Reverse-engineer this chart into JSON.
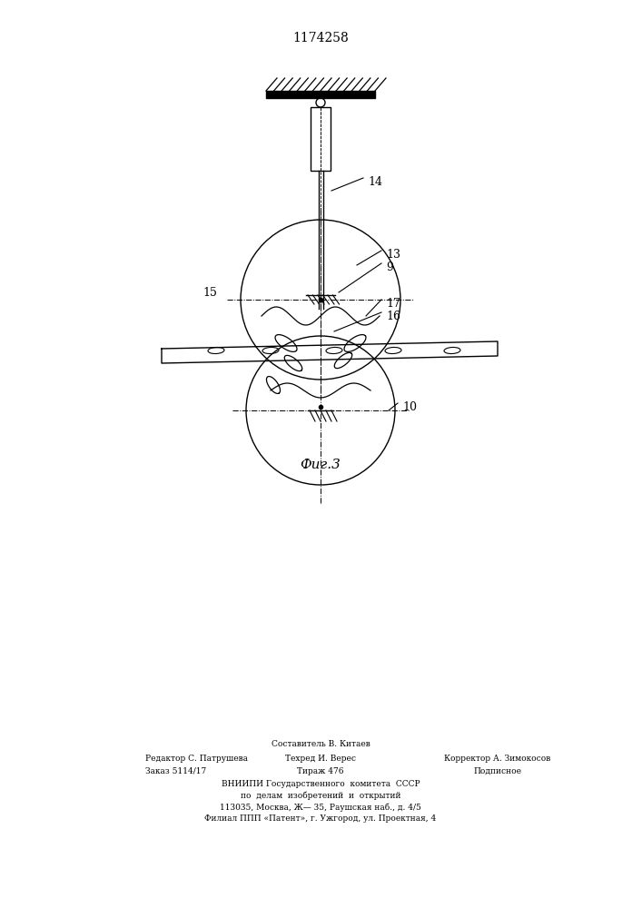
{
  "title": "1174258",
  "fig_label": "Фиг.3",
  "background_color": "#ffffff",
  "line_color": "#000000",
  "footer_col1_line1": "Редактор С. Патрушева",
  "footer_col1_line2": "Заказ 5114/17",
  "footer_col2_line0": "Составитель В. Китаев",
  "footer_col2_line1": "Техред И. Верес",
  "footer_col2_line2": "Тираж 476",
  "footer_col3_line1": "Корректор А. Зимокосов",
  "footer_col3_line2": "Подписное",
  "footer_center1": "ВНИИПИ Государственного  комитета  СССР",
  "footer_center2": "по  делам  изобретений  и  открытий",
  "footer_center3": "113035, Москва, Ж— 35, Раушская наб., д. 4/5",
  "footer_center4": "Филиал ППП «Патент», г. Ужгород, ул. Проектная, 4"
}
